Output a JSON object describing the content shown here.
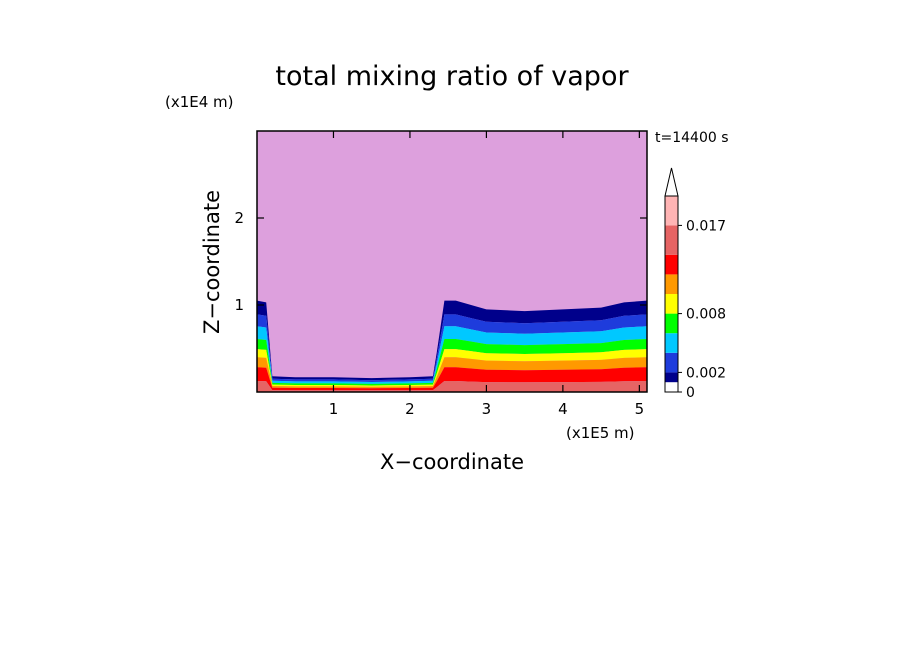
{
  "chart_data": {
    "type": "heatmap",
    "title": "total mixing ratio of vapor",
    "xlabel": "X−coordinate",
    "ylabel": "Z−coordinate",
    "x_unit": "(x1E5 m)",
    "y_unit": "(x1E4 m)",
    "time_label": "t=14400 s",
    "xlim": [
      0,
      5.1
    ],
    "ylim": [
      0,
      3.0
    ],
    "x_ticks": [
      "1",
      "2",
      "3",
      "4",
      "5"
    ],
    "y_ticks": [
      "1",
      "2"
    ],
    "colorbar": {
      "tick_labels": [
        "0",
        "0.002",
        "0.008",
        "0.017"
      ],
      "extend": "max",
      "levels": [
        0,
        0.001,
        0.002,
        0.004,
        0.006,
        0.008,
        0.01,
        0.012,
        0.014,
        0.017,
        0.02
      ],
      "colors": [
        "#ffffff",
        "#00008b",
        "#1e3cdc",
        "#00c8ff",
        "#00ff00",
        "#ffff00",
        "#ff9900",
        "#ff0000",
        "#e66464",
        "#ffb4b4",
        "#ffffff"
      ]
    },
    "background_color": "#dda0dd",
    "profiles": {
      "x": [
        0.0,
        0.12,
        0.2,
        0.5,
        1.0,
        1.5,
        2.0,
        2.3,
        2.35,
        2.45,
        2.6,
        2.8,
        3.0,
        3.5,
        4.0,
        4.5,
        4.8,
        5.1
      ],
      "top_z": [
        1.05,
        1.03,
        0.18,
        0.17,
        0.17,
        0.16,
        0.17,
        0.18,
        0.45,
        1.05,
        1.05,
        1.0,
        0.95,
        0.93,
        0.95,
        0.97,
        1.03,
        1.05
      ]
    },
    "bands": [
      {
        "color": "#00008b",
        "frac_top": 1.0,
        "frac_bottom": 0.85
      },
      {
        "color": "#1e3cdc",
        "frac_top": 0.85,
        "frac_bottom": 0.72
      },
      {
        "color": "#00c8ff",
        "frac_top": 0.72,
        "frac_bottom": 0.58
      },
      {
        "color": "#00ff00",
        "frac_top": 0.58,
        "frac_bottom": 0.47
      },
      {
        "color": "#ffff00",
        "frac_top": 0.47,
        "frac_bottom": 0.38
      },
      {
        "color": "#ff9900",
        "frac_top": 0.38,
        "frac_bottom": 0.27
      },
      {
        "color": "#ff0000",
        "frac_top": 0.27,
        "frac_bottom": 0.12
      },
      {
        "color": "#e66464",
        "frac_top": 0.12,
        "frac_bottom": 0.0
      }
    ]
  }
}
